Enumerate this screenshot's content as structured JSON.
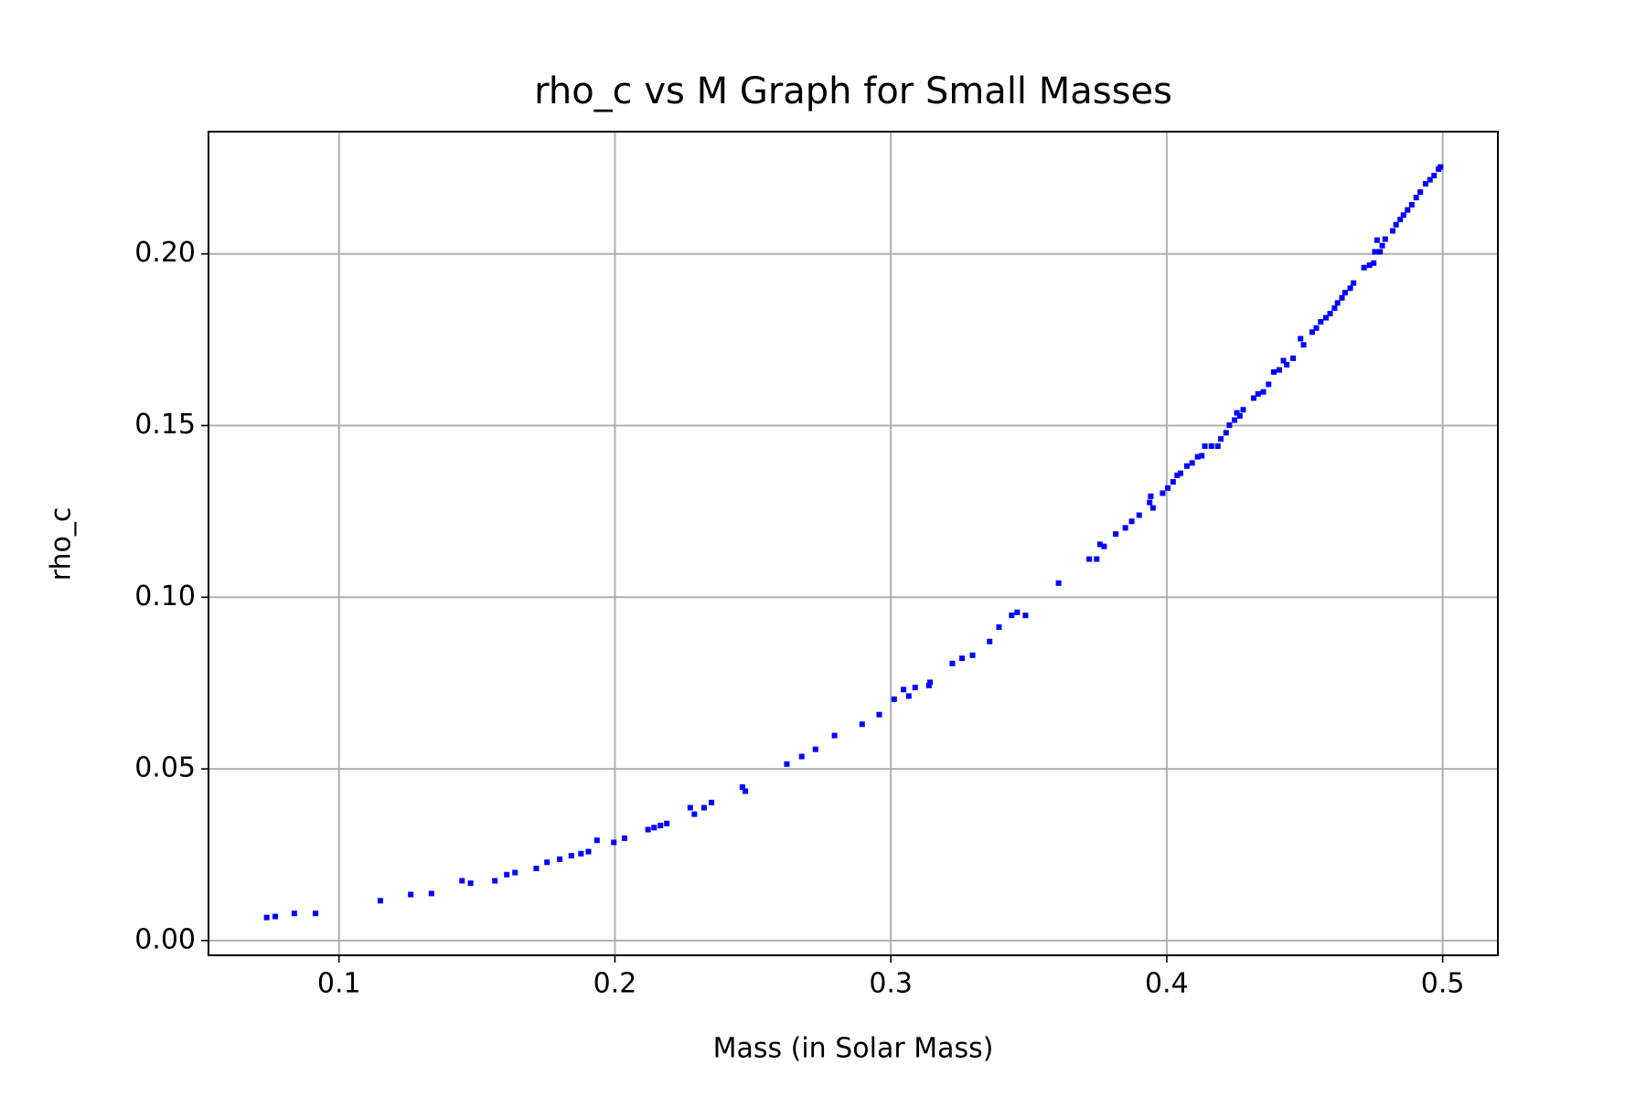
{
  "chart_data": {
    "type": "scatter",
    "title": "rho_c vs M Graph for Small Masses",
    "x_label": "Mass (in Solar Mass)",
    "y_label": "rho_c",
    "color": "#0000ff",
    "grid": true,
    "xlim": [
      0.0527,
      0.52
    ],
    "ylim": [
      -0.0043,
      0.2356
    ],
    "xticks": [
      0.1,
      0.2,
      0.3,
      0.4,
      0.5
    ],
    "yticks": [
      {
        "value": 0,
        "label": "0.00"
      },
      {
        "value": 0.05,
        "label": "0.05"
      },
      {
        "value": 0.1,
        "label": "0.10"
      },
      {
        "value": 0.15,
        "label": "0.15"
      },
      {
        "value": 0.2,
        "label": "0.20"
      }
    ],
    "x": [
      0.0738,
      0.0769,
      0.0838,
      0.0915,
      0.115,
      0.126,
      0.1335,
      0.1446,
      0.1477,
      0.1565,
      0.1608,
      0.1638,
      0.1715,
      0.1754,
      0.18,
      0.1842,
      0.1877,
      0.1904,
      0.1935,
      0.1996,
      0.2035,
      0.212,
      0.2142,
      0.2165,
      0.2188,
      0.2273,
      0.2288,
      0.2323,
      0.235,
      0.2462,
      0.2473,
      0.2623,
      0.2677,
      0.2727,
      0.2796,
      0.2896,
      0.2958,
      0.3012,
      0.3046,
      0.3065,
      0.3088,
      0.3138,
      0.3142,
      0.3223,
      0.3258,
      0.3296,
      0.3358,
      0.3392,
      0.3438,
      0.3458,
      0.3488,
      0.3608,
      0.3719,
      0.3746,
      0.3758,
      0.3773,
      0.3815,
      0.385,
      0.3873,
      0.39,
      0.3938,
      0.3942,
      0.395,
      0.3985,
      0.4004,
      0.4023,
      0.4038,
      0.405,
      0.4073,
      0.4092,
      0.4112,
      0.4127,
      0.4138,
      0.4162,
      0.4185,
      0.4196,
      0.4215,
      0.4227,
      0.4246,
      0.4254,
      0.4265,
      0.4277,
      0.4315,
      0.4331,
      0.435,
      0.4369,
      0.4388,
      0.4408,
      0.4423,
      0.4435,
      0.4458,
      0.4485,
      0.4496,
      0.4527,
      0.4542,
      0.4558,
      0.4577,
      0.4592,
      0.4608,
      0.4619,
      0.4635,
      0.4646,
      0.4665,
      0.4677,
      0.4715,
      0.4735,
      0.475,
      0.4754,
      0.4762,
      0.4773,
      0.4781,
      0.4792,
      0.4819,
      0.4831,
      0.4846,
      0.4858,
      0.4873,
      0.4888,
      0.4904,
      0.4919,
      0.4938,
      0.4954,
      0.4969,
      0.4985,
      0.4992
    ],
    "values": [
      0.0067,
      0.007,
      0.0079,
      0.0079,
      0.0116,
      0.0134,
      0.0137,
      0.0174,
      0.0167,
      0.0174,
      0.0192,
      0.0198,
      0.021,
      0.0228,
      0.0237,
      0.0247,
      0.0253,
      0.0259,
      0.0292,
      0.0286,
      0.0298,
      0.0323,
      0.0329,
      0.0335,
      0.0341,
      0.0387,
      0.0368,
      0.0387,
      0.0402,
      0.0447,
      0.0435,
      0.0514,
      0.0536,
      0.0557,
      0.0597,
      0.063,
      0.0658,
      0.0703,
      0.0731,
      0.0712,
      0.0737,
      0.0743,
      0.0752,
      0.0807,
      0.0822,
      0.0831,
      0.0871,
      0.0913,
      0.0947,
      0.0956,
      0.0947,
      0.1041,
      0.1111,
      0.1111,
      0.1154,
      0.1148,
      0.1184,
      0.1202,
      0.1221,
      0.1239,
      0.1276,
      0.1294,
      0.126,
      0.1303,
      0.1318,
      0.1336,
      0.1355,
      0.1361,
      0.1382,
      0.1391,
      0.1409,
      0.1412,
      0.144,
      0.144,
      0.144,
      0.1461,
      0.1479,
      0.1501,
      0.1516,
      0.1537,
      0.1528,
      0.1546,
      0.158,
      0.1592,
      0.1598,
      0.162,
      0.1656,
      0.1662,
      0.1689,
      0.1677,
      0.1696,
      0.1753,
      0.1735,
      0.1772,
      0.1784,
      0.1802,
      0.1814,
      0.1826,
      0.1842,
      0.1857,
      0.1872,
      0.1887,
      0.19,
      0.1915,
      0.196,
      0.1967,
      0.1973,
      0.2006,
      0.204,
      0.2006,
      0.2024,
      0.2043,
      0.2067,
      0.2085,
      0.21,
      0.2113,
      0.2128,
      0.2143,
      0.2164,
      0.218,
      0.2204,
      0.2216,
      0.2228,
      0.2247,
      0.2253
    ]
  }
}
